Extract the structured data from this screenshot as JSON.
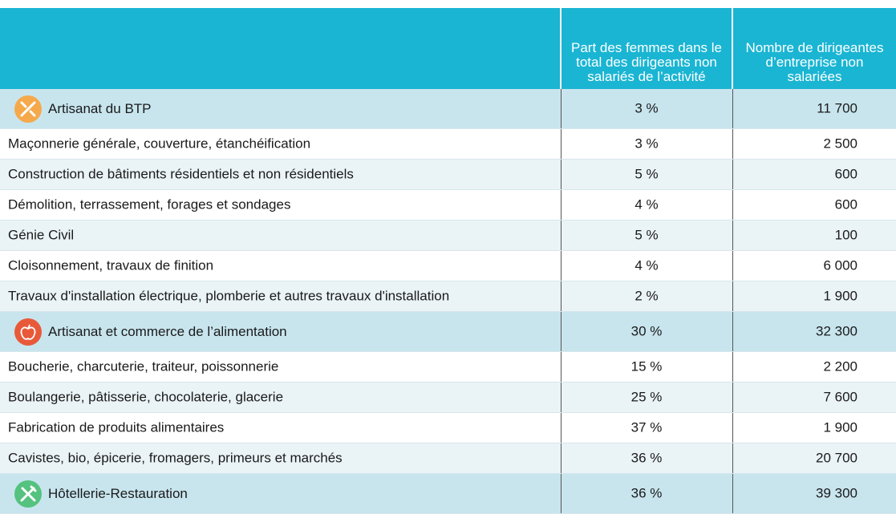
{
  "table": {
    "header": [
      "Part des femmes dans le total des dirigeants non salariés de l’activité",
      "Nombre de dirigeantes d’entreprise non salariées"
    ],
    "rows": [
      {
        "kind": "category",
        "label": "Artisanat du BTP",
        "share": "3 %",
        "count": "11 700"
      },
      {
        "kind": "item",
        "label": "Maçonnerie générale, couverture, étanchéification",
        "share": "3 %",
        "count": "2 500"
      },
      {
        "kind": "item",
        "label": "Construction de bâtiments résidentiels et non résidentiels",
        "share": "5 %",
        "count": "600"
      },
      {
        "kind": "item",
        "label": "Démolition, terrassement, forages et sondages",
        "share": "4 %",
        "count": "600"
      },
      {
        "kind": "item",
        "label": "Génie Civil",
        "share": "5 %",
        "count": "100"
      },
      {
        "kind": "item",
        "label": "Cloisonnement, travaux de finition",
        "share": "4 %",
        "count": "6 000"
      },
      {
        "kind": "item",
        "label": "Travaux d'installation électrique, plomberie et autres travaux d'installation",
        "share": "2 %",
        "count": "1 900"
      },
      {
        "kind": "category",
        "label": "Artisanat et commerce de l’alimentation",
        "share": "30 %",
        "count": "32 300"
      },
      {
        "kind": "item",
        "label": "Boucherie, charcuterie, traiteur, poissonnerie",
        "share": "15 %",
        "count": "2 200"
      },
      {
        "kind": "item",
        "label": "Boulangerie, pâtisserie, chocolaterie, glacerie",
        "share": "25 %",
        "count": "7 600"
      },
      {
        "kind": "item",
        "label": "Fabrication de produits alimentaires",
        "share": "37 %",
        "count": "1 900"
      },
      {
        "kind": "item",
        "label": "Cavistes, bio, épicerie, fromagers, primeurs et marchés",
        "share": "36 %",
        "count": "20 700"
      },
      {
        "kind": "category",
        "label": "Hôtellerie-Restauration",
        "share": "36 %",
        "count": "39 300"
      }
    ]
  }
}
